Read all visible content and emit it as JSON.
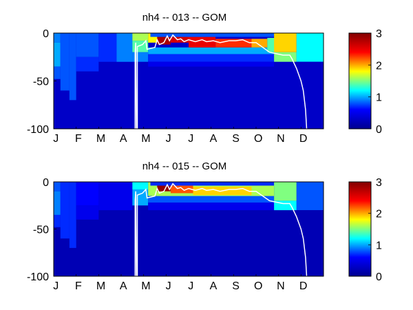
{
  "colorscale": [
    "#00008f",
    "#0000ff",
    "#00ffff",
    "#ffff00",
    "#ff0000",
    "#800000"
  ],
  "chart_data": [
    {
      "type": "heatmap",
      "title": "nh4 -- 013 -- GOM",
      "xlabel": "",
      "ylabel": "",
      "x_tick_labels": [
        "J",
        "F",
        "M",
        "A",
        "M",
        "J",
        "J",
        "A",
        "S",
        "O",
        "N",
        "D"
      ],
      "y_ticks": [
        0,
        -50,
        -100
      ],
      "ylim": [
        -100,
        0
      ],
      "xlim_months": [
        0,
        12
      ],
      "colorbar": {
        "range": [
          0,
          3
        ],
        "ticks": [
          0,
          1,
          2,
          3
        ]
      },
      "background_value": 0.3,
      "regions": [
        {
          "t": [
            0.0,
            0.3
          ],
          "z": [
            -10,
            0
          ],
          "v": 0.9
        },
        {
          "t": [
            0.0,
            0.3
          ],
          "z": [
            -35,
            -10
          ],
          "v": 1.0
        },
        {
          "t": [
            0.0,
            0.3
          ],
          "z": [
            -48,
            -35
          ],
          "v": 0.8
        },
        {
          "t": [
            0.3,
            0.7
          ],
          "z": [
            -60,
            0
          ],
          "v": 0.8
        },
        {
          "t": [
            0.7,
            1.0
          ],
          "z": [
            -70,
            0
          ],
          "v": 0.8
        },
        {
          "t": [
            1.0,
            2.0
          ],
          "z": [
            -25,
            0
          ],
          "v": 0.8
        },
        {
          "t": [
            1.0,
            2.0
          ],
          "z": [
            -40,
            -25
          ],
          "v": 0.7
        },
        {
          "t": [
            2.0,
            3.5
          ],
          "z": [
            -30,
            0
          ],
          "v": 0.7
        },
        {
          "t": [
            2.8,
            3.5
          ],
          "z": [
            -30,
            0
          ],
          "v": 0.9
        },
        {
          "t": [
            3.5,
            4.2
          ],
          "z": [
            -8,
            0
          ],
          "v": 1.6
        },
        {
          "t": [
            3.5,
            4.2
          ],
          "z": [
            -20,
            -8
          ],
          "v": 1.4
        },
        {
          "t": [
            3.5,
            4.2
          ],
          "z": [
            -30,
            -20
          ],
          "v": 0.9
        },
        {
          "t": [
            4.2,
            9.8
          ],
          "z": [
            -22,
            -15
          ],
          "v": 1.0
        },
        {
          "t": [
            4.2,
            9.8
          ],
          "z": [
            -30,
            -22
          ],
          "v": 0.7
        },
        {
          "t": [
            4.2,
            9.8
          ],
          "z": [
            -35,
            -30
          ],
          "v": 0.5
        },
        {
          "t": [
            4.2,
            5.0
          ],
          "z": [
            -10,
            0
          ],
          "v": 1.8
        },
        {
          "t": [
            4.6,
            5.2
          ],
          "z": [
            -12,
            0
          ],
          "v": 2.8
        },
        {
          "t": [
            5.2,
            6.0
          ],
          "z": [
            -10,
            -3
          ],
          "v": 2.6
        },
        {
          "t": [
            6.0,
            7.2
          ],
          "z": [
            -15,
            -4
          ],
          "v": 2.5
        },
        {
          "t": [
            7.2,
            8.8
          ],
          "z": [
            -15,
            -6
          ],
          "v": 2.3
        },
        {
          "t": [
            8.8,
            9.5
          ],
          "z": [
            -15,
            -6
          ],
          "v": 2.0
        },
        {
          "t": [
            9.5,
            10.0
          ],
          "z": [
            -20,
            -5
          ],
          "v": 1.4
        },
        {
          "t": [
            4.3,
            9.8
          ],
          "z": [
            -4,
            0
          ],
          "v": 0.8
        },
        {
          "t": [
            9.8,
            10.8
          ],
          "z": [
            -20,
            0
          ],
          "v": 1.9
        },
        {
          "t": [
            9.8,
            10.8
          ],
          "z": [
            -30,
            -20
          ],
          "v": 1.5
        },
        {
          "t": [
            10.8,
            12.0
          ],
          "z": [
            -30,
            0
          ],
          "v": 1.2
        },
        {
          "t": [
            10.8,
            12.0
          ],
          "z": [
            -100,
            -30
          ],
          "v": 0.3
        }
      ],
      "mixed_layer_depth": [
        [
          3.62,
          -100
        ],
        [
          3.62,
          -20
        ],
        [
          3.65,
          -10
        ],
        [
          3.68,
          -100
        ],
        [
          3.72,
          -100
        ],
        [
          3.72,
          -14
        ],
        [
          3.95,
          -12
        ],
        [
          4.1,
          -8
        ],
        [
          4.15,
          -17
        ],
        [
          4.5,
          -15
        ],
        [
          4.6,
          -7
        ],
        [
          4.7,
          -12
        ],
        [
          4.9,
          -10
        ],
        [
          5.05,
          -3
        ],
        [
          5.15,
          -8
        ],
        [
          5.3,
          -2
        ],
        [
          5.5,
          -7
        ],
        [
          5.65,
          -6
        ],
        [
          5.8,
          -9
        ],
        [
          6.0,
          -7
        ],
        [
          6.3,
          -9
        ],
        [
          6.6,
          -7
        ],
        [
          6.8,
          -9
        ],
        [
          7.1,
          -8
        ],
        [
          7.4,
          -10
        ],
        [
          7.8,
          -8
        ],
        [
          8.1,
          -8
        ],
        [
          8.4,
          -7
        ],
        [
          8.7,
          -10
        ],
        [
          9.0,
          -10
        ],
        [
          9.3,
          -15
        ],
        [
          9.6,
          -20
        ],
        [
          10.0,
          -22
        ],
        [
          10.2,
          -23
        ],
        [
          10.5,
          -23
        ],
        [
          10.6,
          -27
        ],
        [
          10.8,
          -37
        ],
        [
          11.0,
          -50
        ],
        [
          11.1,
          -60
        ],
        [
          11.2,
          -80
        ],
        [
          11.25,
          -100
        ]
      ]
    },
    {
      "type": "heatmap",
      "title": "nh4 -- 015 -- GOM",
      "xlabel": "",
      "ylabel": "",
      "x_tick_labels": [
        "J",
        "F",
        "M",
        "A",
        "M",
        "J",
        "J",
        "A",
        "S",
        "O",
        "N",
        "D"
      ],
      "y_ticks": [
        0,
        -50,
        -100
      ],
      "ylim": [
        -100,
        0
      ],
      "xlim_months": [
        0,
        12
      ],
      "colorbar": {
        "range": [
          0,
          3
        ],
        "ticks": [
          0,
          1,
          2,
          3
        ]
      },
      "background_value": 0.2,
      "regions": [
        {
          "t": [
            0.0,
            0.3
          ],
          "z": [
            -10,
            0
          ],
          "v": 0.8
        },
        {
          "t": [
            0.0,
            0.3
          ],
          "z": [
            -35,
            -10
          ],
          "v": 0.9
        },
        {
          "t": [
            0.0,
            0.3
          ],
          "z": [
            -48,
            -35
          ],
          "v": 0.7
        },
        {
          "t": [
            0.3,
            0.7
          ],
          "z": [
            -60,
            0
          ],
          "v": 0.7
        },
        {
          "t": [
            0.7,
            1.0
          ],
          "z": [
            -70,
            0
          ],
          "v": 0.7
        },
        {
          "t": [
            1.0,
            2.0
          ],
          "z": [
            -25,
            0
          ],
          "v": 0.6
        },
        {
          "t": [
            1.0,
            2.0
          ],
          "z": [
            -40,
            -25
          ],
          "v": 0.5
        },
        {
          "t": [
            2.0,
            3.5
          ],
          "z": [
            -30,
            0
          ],
          "v": 0.5
        },
        {
          "t": [
            3.5,
            4.2
          ],
          "z": [
            -8,
            0
          ],
          "v": 1.2
        },
        {
          "t": [
            3.5,
            4.2
          ],
          "z": [
            -25,
            -8
          ],
          "v": 1.0
        },
        {
          "t": [
            4.2,
            9.8
          ],
          "z": [
            -22,
            -15
          ],
          "v": 0.8
        },
        {
          "t": [
            4.2,
            9.8
          ],
          "z": [
            -30,
            -22
          ],
          "v": 0.5
        },
        {
          "t": [
            4.2,
            9.8
          ],
          "z": [
            -15,
            0
          ],
          "v": 1.6
        },
        {
          "t": [
            4.6,
            5.2
          ],
          "z": [
            -10,
            0
          ],
          "v": 2.9
        },
        {
          "t": [
            5.2,
            6.2
          ],
          "z": [
            -12,
            -3
          ],
          "v": 2.2
        },
        {
          "t": [
            6.2,
            8.8
          ],
          "z": [
            -14,
            -5
          ],
          "v": 1.9
        },
        {
          "t": [
            4.3,
            9.8
          ],
          "z": [
            -4,
            0
          ],
          "v": 0.7
        },
        {
          "t": [
            9.8,
            10.8
          ],
          "z": [
            -20,
            0
          ],
          "v": 1.5
        },
        {
          "t": [
            9.8,
            10.8
          ],
          "z": [
            -30,
            -20
          ],
          "v": 1.2
        },
        {
          "t": [
            10.8,
            12.0
          ],
          "z": [
            -30,
            0
          ],
          "v": 0.8
        },
        {
          "t": [
            10.8,
            12.0
          ],
          "z": [
            -100,
            -30
          ],
          "v": 0.2
        }
      ],
      "mixed_layer_depth": [
        [
          3.62,
          -100
        ],
        [
          3.62,
          -20
        ],
        [
          3.65,
          -10
        ],
        [
          3.68,
          -100
        ],
        [
          3.72,
          -100
        ],
        [
          3.72,
          -14
        ],
        [
          3.95,
          -12
        ],
        [
          4.1,
          -8
        ],
        [
          4.15,
          -17
        ],
        [
          4.5,
          -15
        ],
        [
          4.6,
          -7
        ],
        [
          4.7,
          -12
        ],
        [
          4.9,
          -10
        ],
        [
          5.05,
          -3
        ],
        [
          5.15,
          -8
        ],
        [
          5.3,
          -2
        ],
        [
          5.5,
          -7
        ],
        [
          5.65,
          -6
        ],
        [
          5.8,
          -9
        ],
        [
          6.0,
          -7
        ],
        [
          6.3,
          -9
        ],
        [
          6.6,
          -7
        ],
        [
          6.8,
          -9
        ],
        [
          7.1,
          -8
        ],
        [
          7.4,
          -10
        ],
        [
          7.8,
          -8
        ],
        [
          8.1,
          -8
        ],
        [
          8.4,
          -7
        ],
        [
          8.7,
          -10
        ],
        [
          9.0,
          -10
        ],
        [
          9.3,
          -15
        ],
        [
          9.6,
          -20
        ],
        [
          10.0,
          -22
        ],
        [
          10.2,
          -23
        ],
        [
          10.5,
          -23
        ],
        [
          10.6,
          -27
        ],
        [
          10.8,
          -37
        ],
        [
          11.0,
          -50
        ],
        [
          11.1,
          -60
        ],
        [
          11.2,
          -80
        ],
        [
          11.25,
          -100
        ]
      ]
    }
  ]
}
